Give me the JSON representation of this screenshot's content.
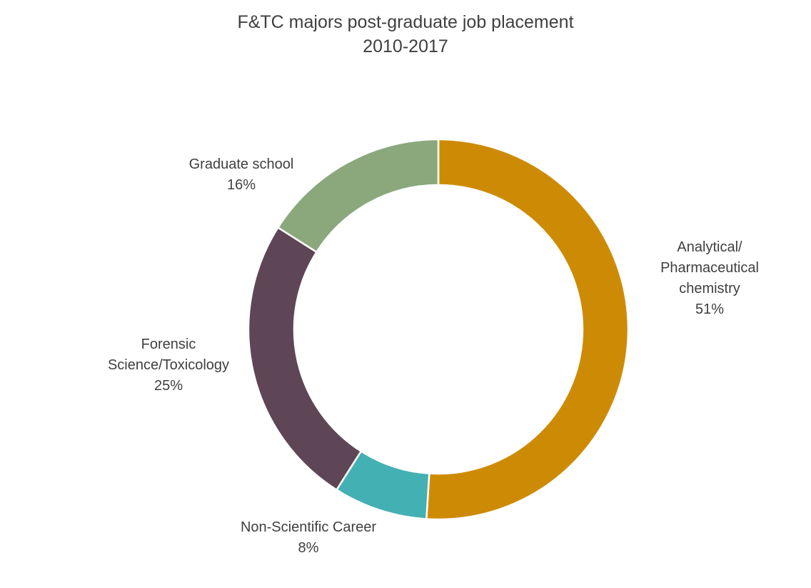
{
  "chart_data": {
    "type": "pie",
    "style": "donut",
    "title": "F&TC majors post-graduate job placement",
    "subtitle": "2010-2017",
    "slices": [
      {
        "label_lines": [
          "Analytical/",
          "Pharmaceutical",
          "chemistry"
        ],
        "value": 51,
        "value_label": "51%",
        "color": "#cd8b05"
      },
      {
        "label_lines": [
          "Non-Scientific Career"
        ],
        "value": 8,
        "value_label": "8%",
        "color": "#43b0b3"
      },
      {
        "label_lines": [
          "Forensic",
          "Science/Toxicology"
        ],
        "value": 25,
        "value_label": "25%",
        "color": "#5f4656"
      },
      {
        "label_lines": [
          "Graduate school"
        ],
        "value": 16,
        "value_label": "16%",
        "color": "#8aa87c"
      }
    ],
    "start_angle": "12 o'clock",
    "direction": "clockwise",
    "legend": "none",
    "separator_color": "#ffffff"
  }
}
